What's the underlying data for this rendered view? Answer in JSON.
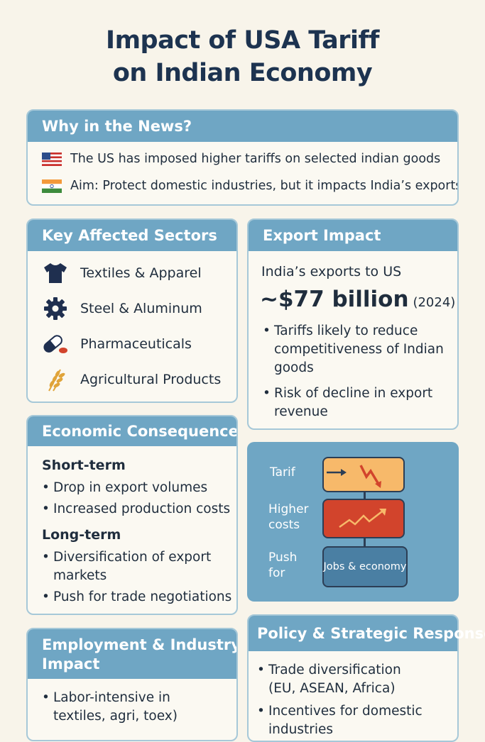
{
  "title_line1": "Impact of USA Tariff",
  "title_line2": "on Indian Economy",
  "news": {
    "header": "Why in the News?",
    "item1": "The US has imposed higher tariffs on selected indian goods",
    "item2": "Aim: Protect domestic industries, but it impacts India’s exports"
  },
  "sectors": {
    "header": "Key Affected Sectors",
    "items": [
      {
        "label": "Textiles & Apparel",
        "icon": "tshirt-icon"
      },
      {
        "label": "Steel & Aluminum",
        "icon": "gear-icon"
      },
      {
        "label": "Pharmaceuticals",
        "icon": "pill-icon"
      },
      {
        "label": "Agricultural Products",
        "icon": "wheat-icon"
      }
    ]
  },
  "export": {
    "header": "Export Impact",
    "intro": "India’s exports to US",
    "amount": "~$77 billion",
    "year": "(2024)",
    "b1_l1": "Tariffs likely to reduce",
    "b1_l2": "competitiveness of Indian",
    "b1_l3": "goods",
    "b2_l1": "Risk of decline in export",
    "b2_l2": "revenue"
  },
  "consequences": {
    "header": "Economic Consequences",
    "short_title": "Short-term",
    "s1": "Drop in export volumes",
    "s2": "Increased production costs",
    "long_title": "Long-term",
    "l1_a": "Diversification of export",
    "l1_b": "markets",
    "l2": "Push for trade negotiations"
  },
  "flow": {
    "label1": "Tarif",
    "label2_a": "Higher",
    "label2_b": "costs",
    "label3_a": "Push",
    "label3_b": "for",
    "box3": "Jobs & economy"
  },
  "employment": {
    "header_l1": "Employment & Industry",
    "header_l2": "Impact",
    "b1_l1": "Labor-intensive in",
    "b1_l2": "textiles, agri, toex)"
  },
  "policy": {
    "header": "Policy & Strategic Response",
    "b1_l1": "Trade diversification",
    "b1_l2": "(EU, ASEAN, Africa)",
    "b2_l1": "Incentives for domestic",
    "b2_l2": "industries"
  },
  "colors": {
    "background": "#f8f4ea",
    "header_blue": "#6fa6c4",
    "title_navy": "#1d3350",
    "flow_orange": "#f7b96a",
    "flow_red": "#d2442c",
    "flow_blue": "#4a7fa3"
  }
}
